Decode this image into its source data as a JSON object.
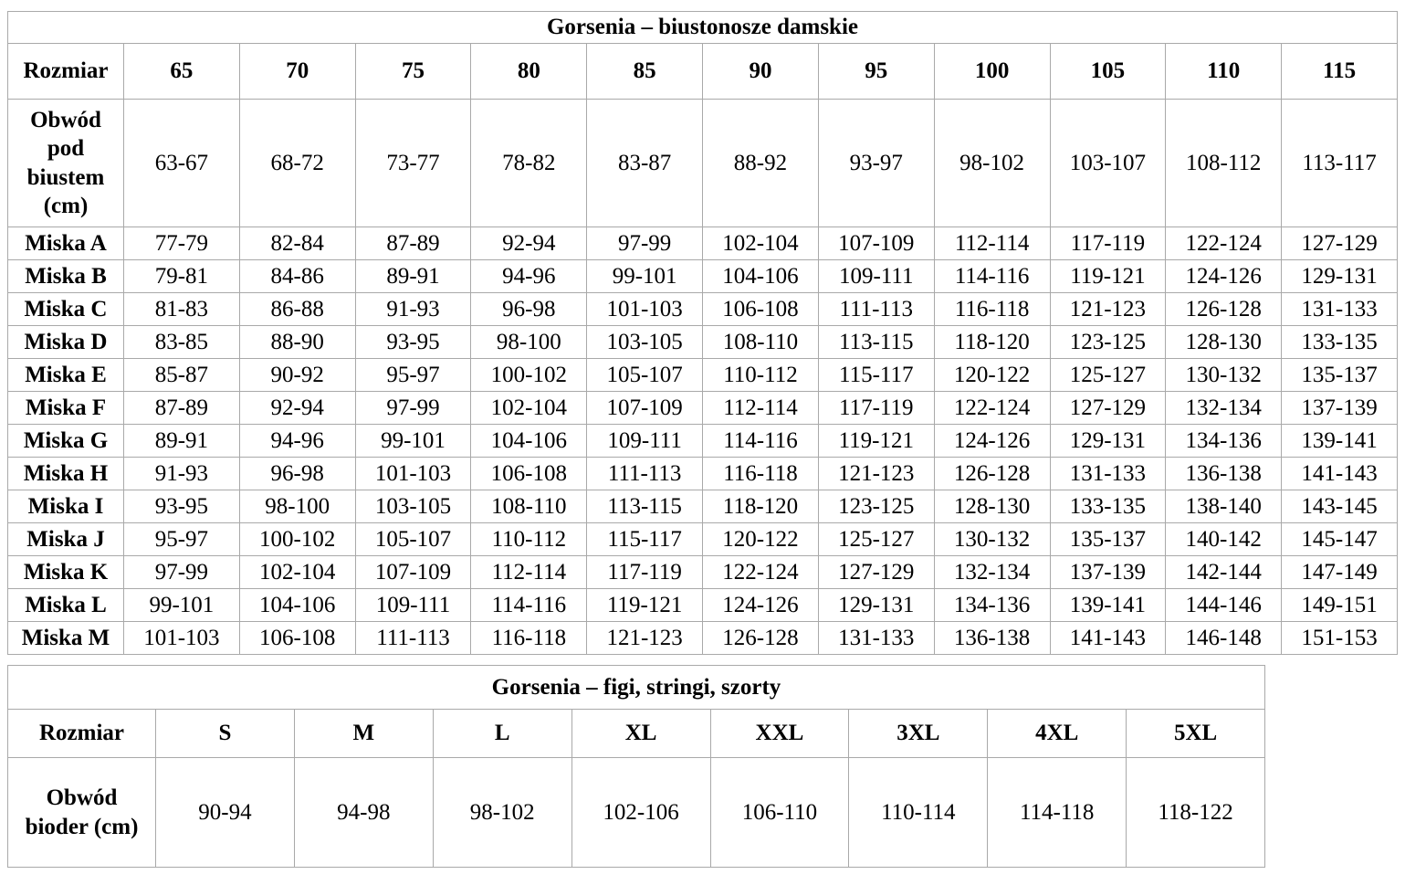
{
  "page": {
    "background_color": "#ffffff",
    "border_color": "#a9a9a9",
    "text_color": "#000000"
  },
  "bras_table": {
    "title": "Gorsenia – biustonosze damskie",
    "row_header_label": "Rozmiar",
    "sizes": [
      "65",
      "70",
      "75",
      "80",
      "85",
      "90",
      "95",
      "100",
      "105",
      "110",
      "115"
    ],
    "underbust_label": "Obwód pod biustem (cm)",
    "underbust": [
      "63-67",
      "68-72",
      "73-77",
      "78-82",
      "83-87",
      "88-92",
      "93-97",
      "98-102",
      "103-107",
      "108-112",
      "113-117"
    ],
    "cup_rows": [
      {
        "label": "Miska A",
        "values": [
          "77-79",
          "82-84",
          "87-89",
          "92-94",
          "97-99",
          "102-104",
          "107-109",
          "112-114",
          "117-119",
          "122-124",
          "127-129"
        ]
      },
      {
        "label": "Miska B",
        "values": [
          "79-81",
          "84-86",
          "89-91",
          "94-96",
          "99-101",
          "104-106",
          "109-111",
          "114-116",
          "119-121",
          "124-126",
          "129-131"
        ]
      },
      {
        "label": "Miska C",
        "values": [
          "81-83",
          "86-88",
          "91-93",
          "96-98",
          "101-103",
          "106-108",
          "111-113",
          "116-118",
          "121-123",
          "126-128",
          "131-133"
        ]
      },
      {
        "label": "Miska D",
        "values": [
          "83-85",
          "88-90",
          "93-95",
          "98-100",
          "103-105",
          "108-110",
          "113-115",
          "118-120",
          "123-125",
          "128-130",
          "133-135"
        ]
      },
      {
        "label": "Miska E",
        "values": [
          "85-87",
          "90-92",
          "95-97",
          "100-102",
          "105-107",
          "110-112",
          "115-117",
          "120-122",
          "125-127",
          "130-132",
          "135-137"
        ]
      },
      {
        "label": "Miska F",
        "values": [
          "87-89",
          "92-94",
          "97-99",
          "102-104",
          "107-109",
          "112-114",
          "117-119",
          "122-124",
          "127-129",
          "132-134",
          "137-139"
        ]
      },
      {
        "label": "Miska G",
        "values": [
          "89-91",
          "94-96",
          "99-101",
          "104-106",
          "109-111",
          "114-116",
          "119-121",
          "124-126",
          "129-131",
          "134-136",
          "139-141"
        ]
      },
      {
        "label": "Miska H",
        "values": [
          "91-93",
          "96-98",
          "101-103",
          "106-108",
          "111-113",
          "116-118",
          "121-123",
          "126-128",
          "131-133",
          "136-138",
          "141-143"
        ]
      },
      {
        "label": "Miska I",
        "values": [
          "93-95",
          "98-100",
          "103-105",
          "108-110",
          "113-115",
          "118-120",
          "123-125",
          "128-130",
          "133-135",
          "138-140",
          "143-145"
        ]
      },
      {
        "label": "Miska J",
        "values": [
          "95-97",
          "100-102",
          "105-107",
          "110-112",
          "115-117",
          "120-122",
          "125-127",
          "130-132",
          "135-137",
          "140-142",
          "145-147"
        ]
      },
      {
        "label": "Miska K",
        "values": [
          "97-99",
          "102-104",
          "107-109",
          "112-114",
          "117-119",
          "122-124",
          "127-129",
          "132-134",
          "137-139",
          "142-144",
          "147-149"
        ]
      },
      {
        "label": "Miska L",
        "values": [
          "99-101",
          "104-106",
          "109-111",
          "114-116",
          "119-121",
          "124-126",
          "129-131",
          "134-136",
          "139-141",
          "144-146",
          "149-151"
        ]
      },
      {
        "label": "Miska M",
        "values": [
          "101-103",
          "106-108",
          "111-113",
          "116-118",
          "121-123",
          "126-128",
          "131-133",
          "136-138",
          "141-143",
          "146-148",
          "151-153"
        ]
      }
    ]
  },
  "briefs_table": {
    "title": "Gorsenia – figi, stringi, szorty",
    "row_header_label": "Rozmiar",
    "sizes": [
      "S",
      "M",
      "L",
      "XL",
      "XXL",
      "3XL",
      "4XL",
      "5XL"
    ],
    "hips_label": "Obwód bioder (cm)",
    "hips": [
      "90-94",
      "94-98",
      "98-102",
      "102-106",
      "106-110",
      "110-114",
      "114-118",
      "118-122"
    ]
  }
}
